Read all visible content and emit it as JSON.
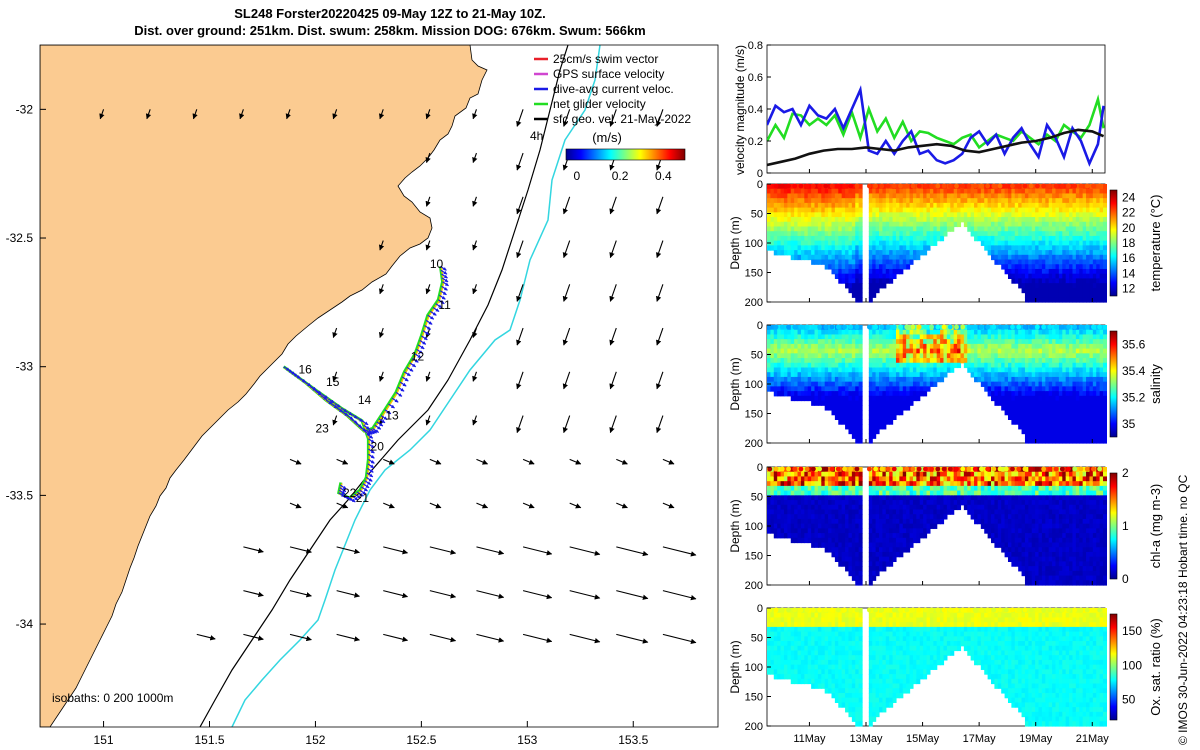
{
  "header": {
    "title_line1": "SL248 Forster20220425 09-May 12Z to 21-May 10Z.",
    "title_line2": "Dist. over ground: 251km. Dist. swum: 258km. Mission DOG: 676km. Swum: 566km"
  },
  "credit": "© IMOS 30-Jun-2022 04:23:18 Hobart time. no QC",
  "colors": {
    "land": "#FBCB91",
    "coast_line": "#000000",
    "isobath_200": "#000000",
    "isobath_1000": "#33D6E0",
    "swim_vector": "#E8202A",
    "gps_velocity": "#D046D0",
    "dive_avg": "#1A1AE6",
    "net_velocity": "#22DD22",
    "sfc_geo": "#000000"
  },
  "chart_data": [
    {
      "id": "map",
      "type": "scatter",
      "xlim": [
        150.7,
        153.9
      ],
      "ylim": [
        -34.4,
        -31.75
      ],
      "xticks": [
        "151",
        "151.5",
        "152",
        "152.5",
        "153",
        "153.5"
      ],
      "xtick_values": [
        151,
        151.5,
        152,
        152.5,
        153,
        153.5
      ],
      "yticks": [
        "-32",
        "-32.5",
        "-33",
        "-33.5",
        "-34"
      ],
      "ytick_values": [
        -32,
        -32.5,
        -33,
        -33.5,
        -34
      ],
      "legend": [
        {
          "label": "25cm/s swim vector",
          "color": "#E8202A"
        },
        {
          "label": "GPS surface velocity",
          "color": "#D046D0"
        },
        {
          "label": "dive-avg current veloc.",
          "color": "#1A1AE6"
        },
        {
          "label": "net glider velocity",
          "color": "#22DD22"
        },
        {
          "label": "sfc geo. vel. 21-May-2022",
          "color": "#000000"
        }
      ],
      "legend_placement": "top-right",
      "arrow_scale_label": "4h",
      "colorbar": {
        "label": "(m/s)",
        "ticks": [
          "0",
          "0.2",
          "0.4"
        ],
        "range": [
          -0.05,
          0.5
        ]
      },
      "isobaths_label": "isobaths: 0   200  1000m",
      "track": [
        [
          152.59,
          -32.61
        ],
        [
          152.6,
          -32.67
        ],
        [
          152.58,
          -32.74
        ],
        [
          152.53,
          -32.8
        ],
        [
          152.5,
          -32.88
        ],
        [
          152.47,
          -32.95
        ],
        [
          152.42,
          -33.02
        ],
        [
          152.38,
          -33.1
        ],
        [
          152.31,
          -33.19
        ],
        [
          152.27,
          -33.24
        ],
        [
          152.23,
          -33.25
        ],
        [
          152.15,
          -33.19
        ],
        [
          152.05,
          -33.13
        ],
        [
          151.95,
          -33.06
        ],
        [
          151.85,
          -33.0
        ],
        [
          151.9,
          -33.03
        ],
        [
          152.0,
          -33.09
        ],
        [
          152.12,
          -33.16
        ],
        [
          152.22,
          -33.21
        ],
        [
          152.25,
          -33.28
        ],
        [
          152.25,
          -33.36
        ],
        [
          152.24,
          -33.43
        ],
        [
          152.21,
          -33.48
        ],
        [
          152.16,
          -33.51
        ],
        [
          152.11,
          -33.49
        ],
        [
          152.12,
          -33.45
        ]
      ],
      "track_labels": [
        {
          "text": "10",
          "lon": 152.54,
          "lat": -32.6
        },
        {
          "text": "11",
          "lon": 152.58,
          "lat": -32.76
        },
        {
          "text": "12",
          "lon": 152.45,
          "lat": -32.96
        },
        {
          "text": "13",
          "lon": 152.33,
          "lat": -33.19
        },
        {
          "text": "14",
          "lon": 152.2,
          "lat": -33.13
        },
        {
          "text": "15",
          "lon": 152.05,
          "lat": -33.06
        },
        {
          "text": "16",
          "lon": 151.92,
          "lat": -33.01
        },
        {
          "text": "20",
          "lon": 152.26,
          "lat": -33.31
        },
        {
          "text": "21",
          "lon": 152.19,
          "lat": -33.51
        },
        {
          "text": "22",
          "lon": 152.13,
          "lat": -33.49
        },
        {
          "text": "23",
          "lon": 152.0,
          "lat": -33.24
        }
      ]
    },
    {
      "id": "velocity",
      "type": "line",
      "ylabel": "velocity magnitude (m/s)",
      "ylim": [
        0,
        0.8
      ],
      "yticks": [
        "0",
        "0.2",
        "0.4",
        "0.6",
        "0.8"
      ],
      "ytick_values": [
        0,
        0.2,
        0.4,
        0.6,
        0.8
      ],
      "xlim": [
        9.5,
        21.45
      ],
      "series": [
        {
          "color": "#22DD22",
          "x": [
            9.5,
            9.8,
            10.1,
            10.4,
            10.7,
            11.0,
            11.3,
            11.6,
            11.9,
            12.2,
            12.5,
            12.8,
            13.1,
            13.4,
            13.7,
            14.0,
            14.3,
            14.6,
            14.9,
            15.2,
            15.5,
            15.8,
            16.1,
            16.4,
            16.7,
            17.0,
            17.3,
            17.6,
            17.9,
            18.2,
            18.5,
            18.8,
            19.1,
            19.4,
            19.7,
            20.0,
            20.3,
            20.6,
            20.9,
            21.2,
            21.4
          ],
          "values": [
            0.2,
            0.3,
            0.22,
            0.37,
            0.36,
            0.3,
            0.34,
            0.3,
            0.36,
            0.24,
            0.38,
            0.22,
            0.4,
            0.26,
            0.34,
            0.22,
            0.32,
            0.2,
            0.26,
            0.25,
            0.22,
            0.2,
            0.18,
            0.22,
            0.24,
            0.16,
            0.2,
            0.24,
            0.22,
            0.2,
            0.26,
            0.22,
            0.18,
            0.24,
            0.2,
            0.3,
            0.26,
            0.22,
            0.3,
            0.46,
            0.28
          ]
        },
        {
          "color": "#1A1AE6",
          "x": [
            9.5,
            9.8,
            10.1,
            10.4,
            10.7,
            11.0,
            11.3,
            11.6,
            11.9,
            12.2,
            12.5,
            12.8,
            13.1,
            13.4,
            13.7,
            14.0,
            14.3,
            14.6,
            14.9,
            15.2,
            15.5,
            15.8,
            16.1,
            16.4,
            16.7,
            17.0,
            17.3,
            17.6,
            17.9,
            18.2,
            18.5,
            18.8,
            19.1,
            19.4,
            19.7,
            20.0,
            20.3,
            20.6,
            20.9,
            21.2,
            21.4
          ],
          "values": [
            0.3,
            0.42,
            0.38,
            0.4,
            0.3,
            0.42,
            0.36,
            0.34,
            0.4,
            0.28,
            0.4,
            0.52,
            0.14,
            0.12,
            0.2,
            0.12,
            0.2,
            0.26,
            0.12,
            0.14,
            0.08,
            0.06,
            0.08,
            0.12,
            0.22,
            0.26,
            0.18,
            0.24,
            0.12,
            0.22,
            0.28,
            0.18,
            0.1,
            0.3,
            0.22,
            0.1,
            0.28,
            0.2,
            0.06,
            0.18,
            0.42
          ]
        },
        {
          "color": "#111111",
          "x": [
            9.5,
            10.0,
            10.5,
            11.0,
            11.5,
            12.0,
            12.5,
            13.0,
            13.5,
            14.0,
            14.5,
            15.0,
            15.5,
            16.0,
            16.5,
            17.0,
            17.5,
            18.0,
            18.5,
            19.0,
            19.5,
            20.0,
            20.5,
            21.0,
            21.4
          ],
          "values": [
            0.05,
            0.07,
            0.09,
            0.12,
            0.14,
            0.15,
            0.15,
            0.16,
            0.15,
            0.14,
            0.16,
            0.17,
            0.18,
            0.17,
            0.14,
            0.13,
            0.15,
            0.17,
            0.19,
            0.2,
            0.22,
            0.25,
            0.27,
            0.26,
            0.23
          ]
        }
      ]
    },
    {
      "id": "temperature",
      "type": "heatmap",
      "ylabel": "Depth (m)",
      "ylim": [
        200,
        0
      ],
      "yticks": [
        "0",
        "50",
        "100",
        "150",
        "200"
      ],
      "colorbar_label": "temperature (°C)",
      "colorbar_ticks": [
        "12",
        "14",
        "16",
        "18",
        "20",
        "22",
        "24"
      ],
      "colorbar_range": [
        11,
        25
      ]
    },
    {
      "id": "salinity",
      "type": "heatmap",
      "ylabel": "Depth (m)",
      "ylim": [
        200,
        0
      ],
      "yticks": [
        "0",
        "50",
        "100",
        "150",
        "200"
      ],
      "colorbar_label": "salinity",
      "colorbar_ticks": [
        "35",
        "35.2",
        "35.4",
        "35.6"
      ],
      "colorbar_range": [
        34.9,
        35.7
      ]
    },
    {
      "id": "chla",
      "type": "heatmap",
      "ylabel": "Depth (m)",
      "ylim": [
        200,
        0
      ],
      "yticks": [
        "0",
        "50",
        "100",
        "150",
        "200"
      ],
      "colorbar_label": "chl-a (mg m-3)",
      "colorbar_ticks": [
        "0",
        "1",
        "2"
      ],
      "colorbar_range": [
        0,
        2
      ]
    },
    {
      "id": "oxygen",
      "type": "heatmap",
      "ylabel": "Depth (m)",
      "ylim": [
        200,
        0
      ],
      "yticks": [
        "0",
        "50",
        "100",
        "150",
        "200"
      ],
      "colorbar_label": "Ox. sat. ratio (%)",
      "colorbar_ticks": [
        "50",
        "100",
        "150"
      ],
      "colorbar_range": [
        20,
        175
      ],
      "xlim": [
        9.5,
        21.45
      ],
      "xticks": [
        "11May",
        "13May",
        "15May",
        "17May",
        "19May",
        "21May"
      ],
      "xtick_values": [
        11,
        13,
        15,
        17,
        19,
        21
      ]
    }
  ]
}
